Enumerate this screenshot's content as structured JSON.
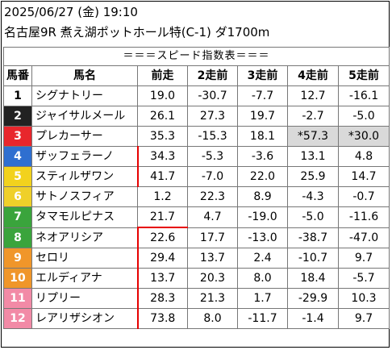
{
  "header": {
    "datetime": "2025/06/27 (金) 19:10",
    "race": "名古屋9R 煮え湖ポットホール特(C-1) ダ1700m"
  },
  "table": {
    "caption": "＝＝＝スピード指数表＝＝＝",
    "columns": [
      "馬番",
      "馬名",
      "前走",
      "2走前",
      "3走前",
      "4走前",
      "5走前"
    ],
    "rows": [
      {
        "num": "1",
        "name": "シグナトリー",
        "v1": "19.0",
        "v2": "-30.7",
        "v3": "-7.7",
        "v4": "12.7",
        "v5": "-16.1",
        "bg": "#ffffff",
        "fg": "#000000"
      },
      {
        "num": "2",
        "name": "ジャイサルメール",
        "v1": "26.1",
        "v2": "27.3",
        "v3": "19.7",
        "v4": "-2.7",
        "v5": "-5.0",
        "bg": "#222222",
        "fg": "#ffffff"
      },
      {
        "num": "3",
        "name": "プレカーサー",
        "v1": "35.3",
        "v2": "-15.3",
        "v3": "18.1",
        "v4": "*57.3",
        "v5": "*30.0",
        "bg": "#e8262c",
        "fg": "#ffffff"
      },
      {
        "num": "4",
        "name": "ザッフェラーノ",
        "v1": "34.3",
        "v2": "-5.3",
        "v3": "-3.6",
        "v4": "13.1",
        "v5": "4.8",
        "bg": "#2f6fd0",
        "fg": "#ffffff"
      },
      {
        "num": "5",
        "name": "スティルザワン",
        "v1": "41.7",
        "v2": "-7.0",
        "v3": "22.0",
        "v4": "25.9",
        "v5": "14.7",
        "bg": "#f2d21d",
        "fg": "#ffffff"
      },
      {
        "num": "6",
        "name": "サトノスフィア",
        "v1": "1.2",
        "v2": "22.3",
        "v3": "8.9",
        "v4": "-4.3",
        "v5": "-0.7",
        "bg": "#efd02a",
        "fg": "#ffffff"
      },
      {
        "num": "7",
        "name": "タマモルピナス",
        "v1": "21.7",
        "v2": "4.7",
        "v3": "-19.0",
        "v4": "-5.0",
        "v5": "-11.6",
        "bg": "#3aa43c",
        "fg": "#ffffff"
      },
      {
        "num": "8",
        "name": "ネオアリシア",
        "v1": "22.6",
        "v2": "17.7",
        "v3": "-13.0",
        "v4": "-38.7",
        "v5": "-47.0",
        "bg": "#3aa43c",
        "fg": "#ffffff"
      },
      {
        "num": "9",
        "name": "セロリ",
        "v1": "29.4",
        "v2": "13.7",
        "v3": "2.4",
        "v4": "-10.7",
        "v5": "9.7",
        "bg": "#f0962a",
        "fg": "#ffffff"
      },
      {
        "num": "10",
        "name": "エルディアナ",
        "v1": "13.7",
        "v2": "20.3",
        "v3": "8.0",
        "v4": "18.4",
        "v5": "-5.7",
        "bg": "#f0962a",
        "fg": "#ffffff"
      },
      {
        "num": "11",
        "name": "リプリー",
        "v1": "28.3",
        "v2": "21.3",
        "v3": "1.7",
        "v4": "-29.9",
        "v5": "10.3",
        "bg": "#f28aa6",
        "fg": "#ffffff"
      },
      {
        "num": "12",
        "name": "レアリザシオン",
        "v1": "73.8",
        "v2": "8.0",
        "v3": "-11.7",
        "v4": "-1.4",
        "v5": "9.7",
        "bg": "#f28aa6",
        "fg": "#ffffff"
      }
    ],
    "highlighted_cells": [
      [
        2,
        4
      ],
      [
        2,
        5
      ]
    ]
  },
  "colors": {
    "divider_red": "#e60000",
    "highlight_gray": "#d9d9d9"
  }
}
